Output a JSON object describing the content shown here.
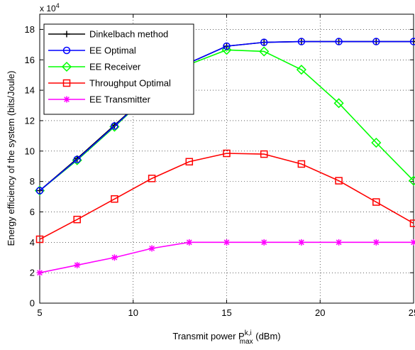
{
  "chart_data": {
    "type": "line",
    "xlabel": {
      "main": "Transmit power P",
      "sup": "k,i",
      "sub": "max",
      "unit": " (dBm)"
    },
    "ylabel": "Energy efficiency of the system  (bits/Joule)",
    "y_multiplier": {
      "base": "x 10",
      "exp": "4"
    },
    "xlim": [
      5,
      25
    ],
    "ylim": [
      0,
      19
    ],
    "x_ticks": [
      5,
      10,
      15,
      20,
      25
    ],
    "y_ticks": [
      0,
      2,
      4,
      6,
      8,
      10,
      12,
      14,
      16,
      18
    ],
    "grid": true,
    "legend_position": "top-left",
    "x": [
      5,
      7,
      9,
      11,
      13,
      15,
      17,
      19,
      21,
      23,
      25
    ],
    "series": [
      {
        "name": "Dinkelbach method",
        "color": "#000000",
        "marker": "plus",
        "values": [
          7.4,
          9.5,
          11.7,
          13.9,
          15.8,
          16.9,
          17.15,
          17.2,
          17.2,
          17.2,
          17.2
        ]
      },
      {
        "name": "EE Optimal",
        "color": "#0000ff",
        "marker": "circle",
        "values": [
          7.4,
          9.45,
          11.65,
          13.9,
          15.8,
          16.9,
          17.15,
          17.2,
          17.2,
          17.2,
          17.2
        ]
      },
      {
        "name": "EE Receiver",
        "color": "#00ff00",
        "marker": "diamond",
        "values": [
          7.4,
          9.4,
          11.6,
          13.9,
          15.7,
          16.65,
          16.55,
          15.35,
          13.15,
          10.55,
          8.05
        ]
      },
      {
        "name": "Throughput Optimal",
        "color": "#ff0000",
        "marker": "square",
        "values": [
          4.2,
          5.5,
          6.85,
          8.2,
          9.3,
          9.85,
          9.8,
          9.15,
          8.05,
          6.65,
          5.25
        ]
      },
      {
        "name": "EE Transmitter",
        "color": "#ff00ff",
        "marker": "asterisk",
        "values": [
          2.0,
          2.5,
          3.0,
          3.6,
          4.0,
          4.0,
          4.0,
          4.0,
          4.0,
          4.0,
          4.0
        ]
      }
    ]
  }
}
